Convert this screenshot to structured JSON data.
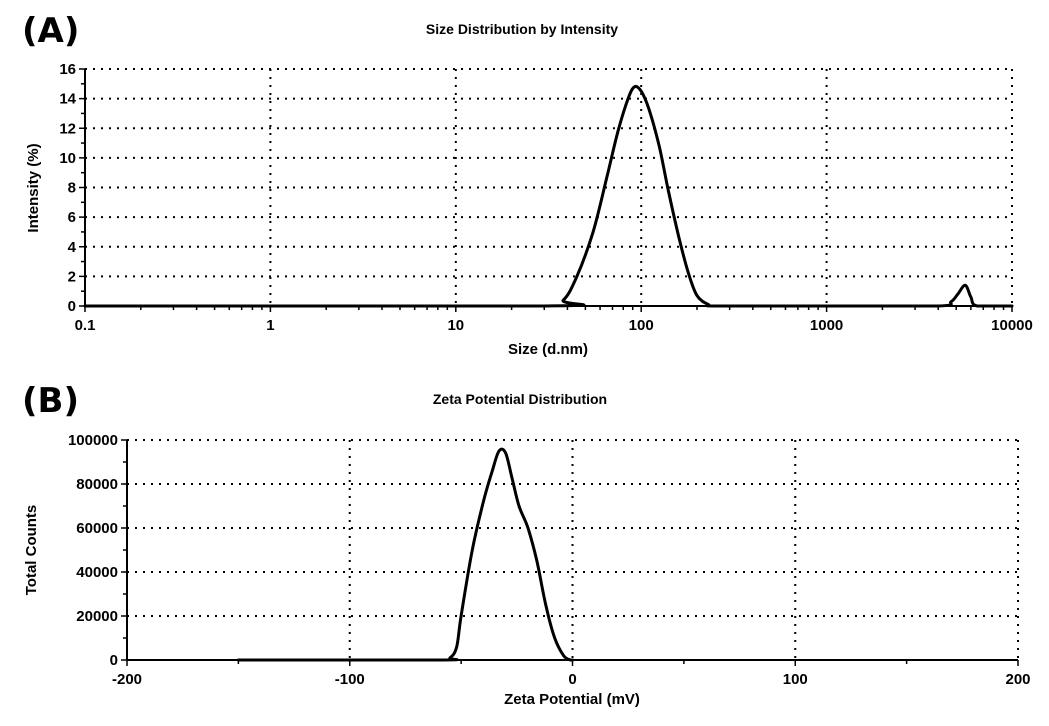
{
  "chart_data": [
    {
      "panel_label": "(A)",
      "type": "line",
      "title": "Size Distribution by Intensity",
      "xlabel": "Size (d.nm)",
      "ylabel": "Intensity (%)",
      "xscale": "log",
      "xlim": [
        0.1,
        10000
      ],
      "ylim": [
        0,
        16
      ],
      "x_ticks": [
        0.1,
        1,
        10,
        100,
        1000,
        10000
      ],
      "x_tick_labels": [
        "0.1",
        "1",
        "10",
        "100",
        "1000",
        "10000"
      ],
      "y_ticks": [
        0,
        2,
        4,
        6,
        8,
        10,
        12,
        14,
        16
      ],
      "y_tick_labels": [
        "0",
        "2",
        "4",
        "6",
        "8",
        "10",
        "12",
        "14",
        "16"
      ],
      "grid": true,
      "series": [
        {
          "name": "Intensity",
          "x": [
            0.1,
            30,
            38,
            45,
            55,
            65,
            75,
            85,
            92,
            100,
            110,
            125,
            140,
            160,
            180,
            200,
            230,
            260,
            1000,
            4000,
            4700,
            5100,
            5600,
            6000,
            6500,
            10000
          ],
          "y": [
            0,
            0,
            0.4,
            2.0,
            5.0,
            8.6,
            11.8,
            14.0,
            14.8,
            14.5,
            13.3,
            10.8,
            7.8,
            4.6,
            2.2,
            0.7,
            0.1,
            0,
            0,
            0,
            0.3,
            0.8,
            1.4,
            0.6,
            0,
            0
          ]
        }
      ]
    },
    {
      "panel_label": "(B)",
      "type": "line",
      "title": "Zeta Potential Distribution",
      "xlabel": "Zeta Potential (mV)",
      "ylabel": "Total Counts",
      "xlim": [
        -200,
        200
      ],
      "ylim": [
        0,
        100000
      ],
      "x_ticks": [
        -200,
        -100,
        0,
        100,
        200
      ],
      "x_tick_labels": [
        "-200",
        "-100",
        "0",
        "100",
        "200"
      ],
      "y_ticks": [
        0,
        20000,
        40000,
        60000,
        80000,
        100000
      ],
      "y_tick_labels": [
        "0",
        "20000",
        "40000",
        "60000",
        "80000",
        "100000"
      ],
      "grid": true,
      "series": [
        {
          "name": "Total Counts",
          "x": [
            -150,
            -60,
            -55,
            -52,
            -50,
            -45,
            -40,
            -36,
            -33,
            -30,
            -27,
            -24,
            -20,
            -16,
            -12,
            -8,
            -4,
            -1,
            0
          ],
          "y": [
            0,
            0,
            1000,
            6000,
            20000,
            50000,
            72000,
            86000,
            95000,
            94000,
            82000,
            70000,
            60000,
            45000,
            25000,
            10000,
            2000,
            0,
            0
          ]
        }
      ]
    }
  ]
}
